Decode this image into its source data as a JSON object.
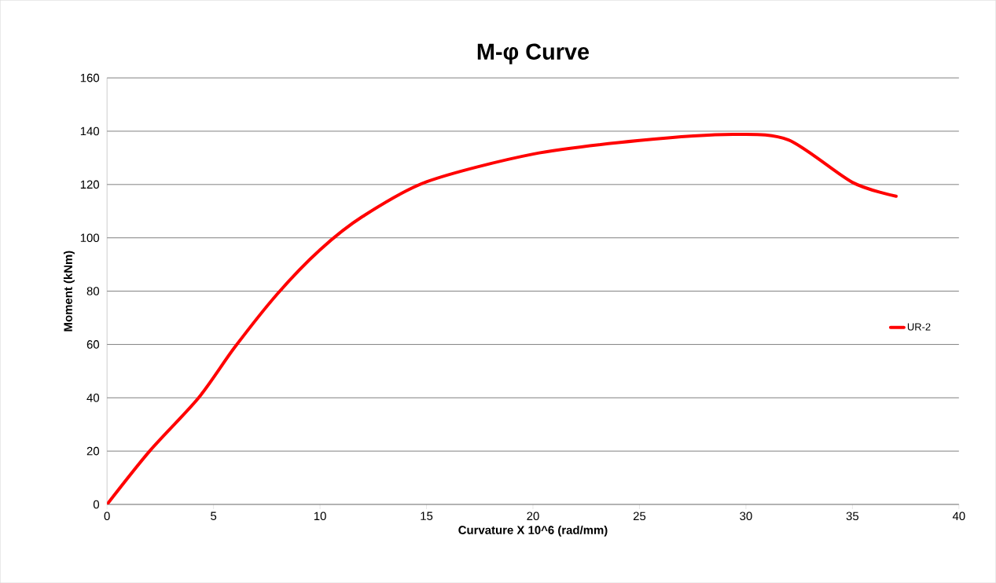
{
  "chart_data": {
    "type": "line",
    "title": "M-φ Curve",
    "xlabel": "Curvature X 10^6 (rad/mm)",
    "ylabel": "Moment (kNm)",
    "xlim": [
      0,
      40
    ],
    "xticks": [
      0,
      5,
      10,
      15,
      20,
      25,
      30,
      35,
      40
    ],
    "ylim": [
      0,
      160
    ],
    "yticks": [
      0,
      20,
      40,
      60,
      80,
      100,
      120,
      140,
      160
    ],
    "grid": "y",
    "legend": "right",
    "line_style": "solid",
    "series": [
      {
        "name": "UR-2",
        "color": "#ff0000",
        "x": [
          0,
          2,
          4.3,
          6,
          8,
          10,
          12,
          15,
          20,
          25,
          29.4,
          32,
          35,
          37.05
        ],
        "values": [
          0,
          20,
          40,
          59,
          79,
          95.5,
          108,
          121,
          131.4,
          136.5,
          138.8,
          136.7,
          120.8,
          115.6
        ]
      }
    ]
  }
}
